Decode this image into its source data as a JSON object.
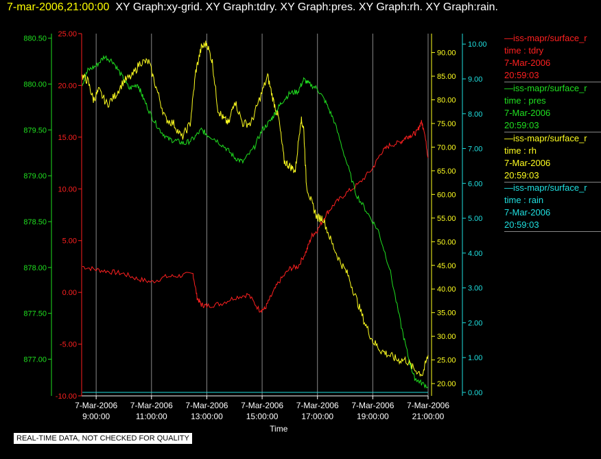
{
  "header": {
    "timestamp": "7-mar-2006,21:00:00",
    "title": "XY Graph:xy-grid.  XY Graph:tdry.  XY Graph:pres.  XY Graph:rh.  XY Graph:rain."
  },
  "notice": "REAL-TIME DATA, NOT CHECKED FOR QUALITY",
  "legend": [
    {
      "line1": "—iss-mapr/surface_r",
      "line2": "time : tdry",
      "line3": "7-Mar-2006",
      "line4": "20:59:03",
      "color": "#ff2020"
    },
    {
      "line1": "—iss-mapr/surface_r",
      "line2": "time : pres",
      "line3": "7-Mar-2006",
      "line4": "20:59:03",
      "color": "#20e020"
    },
    {
      "line1": "—iss-mapr/surface_r",
      "line2": "time : rh",
      "line3": "7-Mar-2006",
      "line4": "20:59:03",
      "color": "#ffff20"
    },
    {
      "line1": "—iss-mapr/surface_r",
      "line2": "time : rain",
      "line3": "7-Mar-2006",
      "line4": "20:59:03",
      "color": "#20e0e0"
    }
  ],
  "chart_data": {
    "type": "line",
    "xlabel": "Time",
    "xlim": [
      8.5,
      21.0
    ],
    "x_ticks": [
      {
        "value": 9,
        "line1": "7-Mar-2006",
        "line2": "9:00:00"
      },
      {
        "value": 11,
        "line1": "7-Mar-2006",
        "line2": "11:00:00"
      },
      {
        "value": 13,
        "line1": "7-Mar-2006",
        "line2": "13:00:00"
      },
      {
        "value": 15,
        "line1": "7-Mar-2006",
        "line2": "15:00:00"
      },
      {
        "value": 17,
        "line1": "7-Mar-2006",
        "line2": "17:00:00"
      },
      {
        "value": 19,
        "line1": "7-Mar-2006",
        "line2": "19:00:00"
      },
      {
        "value": 21,
        "line1": "7-Mar-2006",
        "line2": "21:00:00"
      }
    ],
    "grid": "vertical",
    "axes": {
      "pres": {
        "color": "#20e020",
        "side": "left-outer",
        "range": [
          876.6,
          880.55
        ],
        "ticks": [
          "877.00",
          "877.50",
          "878.00",
          "878.50",
          "879.00",
          "879.50",
          "880.00",
          "880.50"
        ]
      },
      "tdry": {
        "color": "#ff2020",
        "side": "left-inner",
        "range": [
          -10.0,
          25.0
        ],
        "ticks": [
          "-10.00",
          "-5.00",
          "0.00",
          "5.00",
          "10.00",
          "15.00",
          "20.00",
          "25.00"
        ]
      },
      "rh": {
        "color": "#ffff20",
        "side": "right-inner",
        "range": [
          17.4,
          94.0
        ],
        "ticks": [
          "20.00",
          "25.00",
          "30.00",
          "35.00",
          "40.00",
          "45.00",
          "50.00",
          "55.00",
          "60.00",
          "65.00",
          "70.00",
          "75.00",
          "80.00",
          "85.00",
          "90.00"
        ]
      },
      "rain": {
        "color": "#20e0e0",
        "side": "right-outer",
        "range": [
          -0.1,
          10.3
        ],
        "ticks": [
          "0.00",
          "1.00",
          "2.00",
          "3.00",
          "4.00",
          "5.00",
          "6.00",
          "7.00",
          "8.00",
          "9.00",
          "10.00"
        ]
      }
    },
    "series": [
      {
        "axis": "tdry",
        "color": "#ff2020",
        "x": [
          8.5,
          9.0,
          9.5,
          10.0,
          10.5,
          11.0,
          11.5,
          12.0,
          12.5,
          12.65,
          12.8,
          13.0,
          13.5,
          14.0,
          14.5,
          14.9,
          15.1,
          15.3,
          15.6,
          16.0,
          16.3,
          16.6,
          16.8,
          17.0,
          17.3,
          17.6,
          18.0,
          18.5,
          19.0,
          19.3,
          19.6,
          20.0,
          20.2,
          20.4,
          20.6,
          20.75,
          20.85,
          21.0
        ],
        "y": [
          2.5,
          2.2,
          2.0,
          1.8,
          1.3,
          1.0,
          1.5,
          1.6,
          1.8,
          -0.5,
          -1.2,
          -1.3,
          -1.1,
          -0.5,
          -0.2,
          -1.7,
          -1.6,
          -0.5,
          1.0,
          2.3,
          2.5,
          4.0,
          5.5,
          6.0,
          7.5,
          8.5,
          9.5,
          10.5,
          12.0,
          13.5,
          14.2,
          14.5,
          15.0,
          15.2,
          15.5,
          16.5,
          15.8,
          13.0
        ]
      },
      {
        "axis": "pres",
        "color": "#20e020",
        "x": [
          8.5,
          8.7,
          9.0,
          9.3,
          9.6,
          9.9,
          10.2,
          10.5,
          10.7,
          11.0,
          11.3,
          11.6,
          11.9,
          12.2,
          12.5,
          12.8,
          13.0,
          13.3,
          13.7,
          14.0,
          14.3,
          14.7,
          15.0,
          15.3,
          15.5,
          15.7,
          16.0,
          16.3,
          16.5,
          16.7,
          17.0,
          17.3,
          17.6,
          18.0,
          18.4,
          18.8,
          19.2,
          19.6,
          20.0,
          20.3,
          20.5,
          20.7,
          21.0
        ],
        "y": [
          880.0,
          880.15,
          880.2,
          880.3,
          880.25,
          880.1,
          879.95,
          880.0,
          879.85,
          879.65,
          879.5,
          879.4,
          879.38,
          879.35,
          879.4,
          879.5,
          879.45,
          879.4,
          879.3,
          879.2,
          879.15,
          879.3,
          879.5,
          879.6,
          879.7,
          879.8,
          879.9,
          879.92,
          880.05,
          880.0,
          879.95,
          879.8,
          879.6,
          879.2,
          878.8,
          878.6,
          878.4,
          878.0,
          877.4,
          877.0,
          876.8,
          876.75,
          876.7
        ]
      },
      {
        "axis": "rh",
        "color": "#ffff20",
        "x": [
          8.5,
          8.7,
          8.9,
          9.1,
          9.4,
          9.7,
          10.0,
          10.3,
          10.6,
          10.9,
          11.2,
          11.5,
          11.8,
          12.1,
          12.4,
          12.6,
          12.8,
          13.0,
          13.2,
          13.4,
          13.6,
          13.8,
          14.0,
          14.3,
          14.6,
          14.9,
          15.2,
          15.4,
          15.6,
          15.8,
          16.0,
          16.2,
          16.4,
          16.5,
          16.6,
          16.8,
          17.0,
          17.2,
          17.5,
          17.8,
          18.1,
          18.4,
          18.7,
          19.0,
          19.3,
          19.6,
          19.9,
          20.2,
          20.5,
          20.8,
          21.0
        ],
        "y": [
          85.0,
          84.0,
          80.0,
          82.0,
          79.0,
          81.0,
          84.0,
          85.0,
          88.0,
          88.0,
          82.0,
          76.0,
          75.0,
          72.0,
          75.0,
          86.0,
          91.0,
          92.0,
          88.0,
          78.0,
          76.0,
          75.0,
          80.0,
          75.0,
          75.0,
          80.0,
          85.0,
          80.0,
          76.0,
          67.0,
          66.0,
          65.0,
          76.0,
          74.0,
          62.0,
          58.0,
          55.0,
          55.0,
          50.0,
          46.0,
          43.0,
          38.0,
          33.0,
          29.0,
          27.0,
          26.0,
          25.0,
          25.0,
          23.0,
          22.0,
          26.0
        ]
      },
      {
        "axis": "rain",
        "color": "#20e0e0",
        "x": [
          8.5,
          21.0
        ],
        "y": [
          0.0,
          0.0
        ]
      }
    ]
  }
}
